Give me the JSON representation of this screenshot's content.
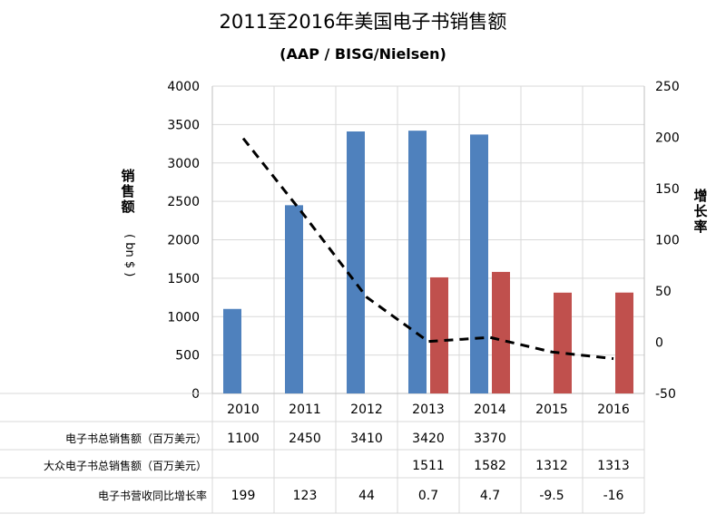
{
  "chart_data": {
    "type": "bar",
    "title": "2011至2016年美国电子书销售额",
    "subtitle": "(AAP / BISG/Nielsen)",
    "categories": [
      "2010",
      "2011",
      "2012",
      "2013",
      "2014",
      "2015",
      "2016"
    ],
    "ylabel_left": "销售额",
    "ylabel_left_unit": "( bn $ )",
    "ylabel_right": "增长率",
    "ylim_left": [
      0,
      4000
    ],
    "ylim_right": [
      -50,
      250
    ],
    "yticks_left": [
      "0",
      "500",
      "1000",
      "1500",
      "2000",
      "2500",
      "3000",
      "3500",
      "4000"
    ],
    "yticks_right": [
      "-50",
      "0",
      "50",
      "100",
      "150",
      "200",
      "250"
    ],
    "series": [
      {
        "name": "电子书总销售额（百万美元）",
        "kind": "bar",
        "axis": "left",
        "color": "#4F81BD",
        "values": [
          1100,
          2450,
          3410,
          3420,
          3370,
          null,
          null
        ]
      },
      {
        "name": "大众电子书总销售额（百万美元）",
        "kind": "bar",
        "axis": "left",
        "color": "#C0504D",
        "values": [
          null,
          null,
          null,
          1511,
          1582,
          1312,
          1313
        ]
      },
      {
        "name": "电子书营收同比增长率",
        "kind": "line",
        "axis": "right",
        "color": "#000000",
        "style": "dashed",
        "values": [
          199,
          123,
          44,
          0.7,
          4.7,
          -9.5,
          -16
        ]
      }
    ],
    "grid": true
  },
  "table": {
    "row_labels": [
      "电子书总销售额（百万美元）",
      "大众电子书总销售额（百万美元）",
      "电子书营收同比增长率"
    ],
    "rows": [
      [
        "1100",
        "2450",
        "3410",
        "3420",
        "3370",
        "",
        ""
      ],
      [
        "",
        "",
        "",
        "1511",
        "1582",
        "1312",
        "1313"
      ],
      [
        "199",
        "123",
        "44",
        "0.7",
        "4.7",
        "-9.5",
        "-16"
      ]
    ]
  }
}
